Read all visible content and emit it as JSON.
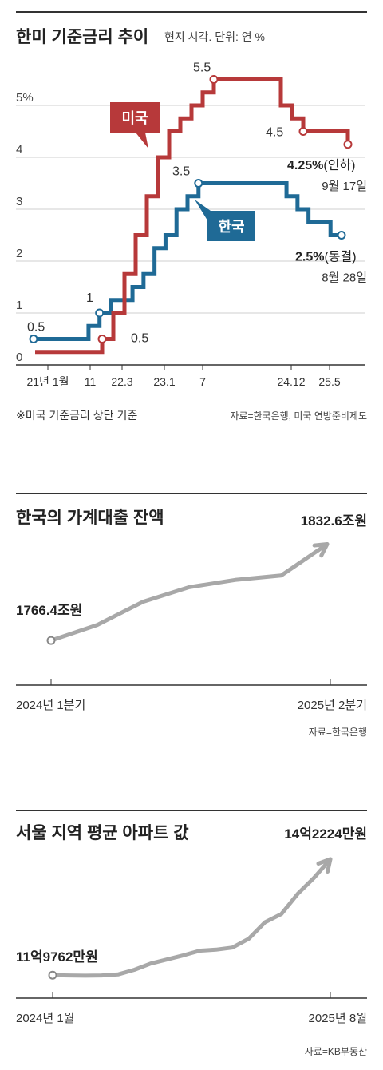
{
  "chart1": {
    "title": "한미 기준금리 추이",
    "subtitle": "현지 시각. 단위: 연 %",
    "note": "※미국 기준금리 상단 기준",
    "source": "자료=한국은행, 미국 연방준비제도",
    "us_label": "미국",
    "kr_label": "한국",
    "us_color": "#b7393a",
    "kr_color": "#1f6a96",
    "y_ticks": [
      "0",
      "1",
      "2",
      "3",
      "4",
      "5%"
    ],
    "x_ticks": [
      "21년 1월",
      "11",
      "22.3",
      "23.1",
      "7",
      "24.12",
      "25.5"
    ],
    "us_values": [
      0.25,
      0.25,
      0.25,
      0.25,
      0.25,
      0.25,
      0.5,
      1.0,
      1.75,
      2.5,
      3.25,
      4.0,
      4.5,
      4.75,
      5.0,
      5.25,
      5.5,
      5.5,
      5.5,
      5.5,
      5.5,
      5.5,
      5.0,
      4.75,
      4.5,
      4.5,
      4.5,
      4.5,
      4.25
    ],
    "kr_values": [
      0.5,
      0.5,
      0.5,
      0.5,
      0.5,
      0.75,
      1.0,
      1.25,
      1.25,
      1.5,
      1.75,
      2.25,
      2.5,
      3.0,
      3.25,
      3.5,
      3.5,
      3.5,
      3.5,
      3.5,
      3.5,
      3.5,
      3.5,
      3.25,
      3.0,
      2.75,
      2.75,
      2.5,
      2.5
    ],
    "annotations": {
      "kr_start": "0.5",
      "kr_nov": "1",
      "us_mar": "0.5",
      "kr_peak": "3.5",
      "us_peak": "5.5",
      "us_dec": "4.5",
      "us_now_value": "4.25%",
      "us_now_action": "(인하)",
      "us_now_date": "9월 17일",
      "kr_now_value": "2.5%",
      "kr_now_action": "(동결)",
      "kr_now_date": "8월 28일"
    }
  },
  "chart2": {
    "title": "한국의 가계대출 잔액",
    "source": "자료=한국은행",
    "start_label": "1766.4조원",
    "end_label": "1832.6조원",
    "x_start": "2024년 1분기",
    "x_end": "2025년 2분기",
    "values": [
      1766.4,
      1777.0,
      1793.0,
      1803.0,
      1808.0,
      1811.0,
      1832.6
    ],
    "ylim": [
      1750,
      1840
    ],
    "color": "#a8a8a8"
  },
  "chart3": {
    "title": "서울 지역 평균 아파트 값",
    "source": "자료=KB부동산",
    "start_label": "11억9762만원",
    "end_label": "14억2224만원",
    "x_start": "2024년 1월",
    "x_end": "2025년 8월",
    "values": [
      119762,
      119700,
      119650,
      119700,
      119900,
      120800,
      122000,
      122800,
      123600,
      124500,
      124700,
      125100,
      126800,
      130000,
      131600,
      135500,
      138600,
      142224
    ],
    "ylim": [
      115000,
      145000
    ],
    "color": "#a8a8a8"
  }
}
